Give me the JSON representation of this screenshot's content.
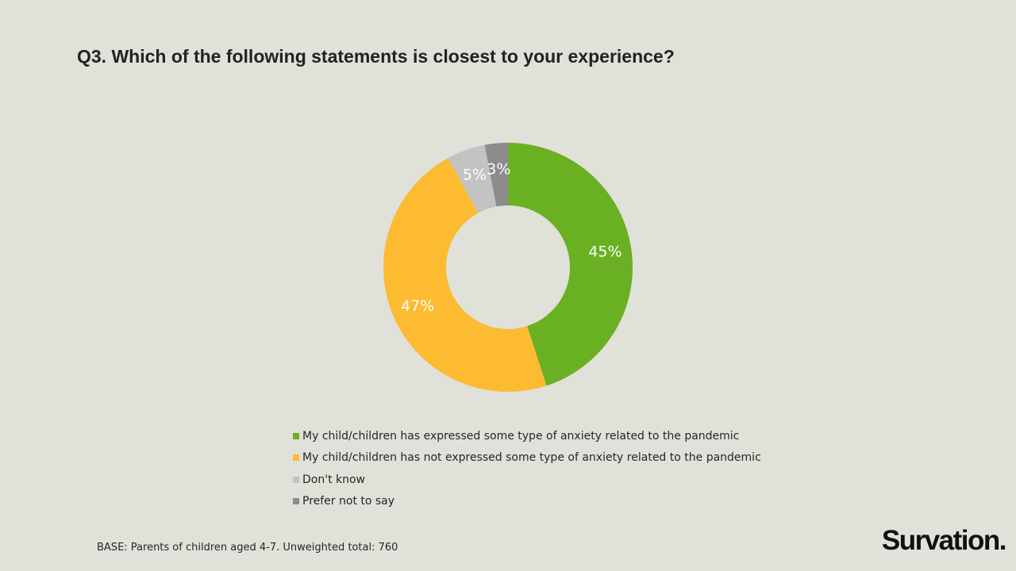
{
  "chart_data": {
    "type": "pie",
    "variant": "donut",
    "title": "Q3. Which of the following statements is closest to your experience?",
    "slices": [
      {
        "label": "My child/children has expressed some type of anxiety related to the pandemic",
        "value": 45,
        "display": "45%",
        "color": "#6ab023"
      },
      {
        "label": "My child/children has not expressed some type of anxiety related to the pandemic",
        "value": 47,
        "display": "47%",
        "color": "#fcbb30"
      },
      {
        "label": "Don't know",
        "value": 5,
        "display": "5%",
        "color": "#c3c3c3"
      },
      {
        "label": "Prefer not to say",
        "value": 3,
        "display": "3%",
        "color": "#8c8c8c"
      }
    ],
    "legend_position": "bottom"
  },
  "footer": {
    "base_note": "BASE: Parents of children aged 4-7. Unweighted total: 760",
    "brand": "Survation."
  },
  "colors": {
    "background": "#e0e1d8"
  }
}
